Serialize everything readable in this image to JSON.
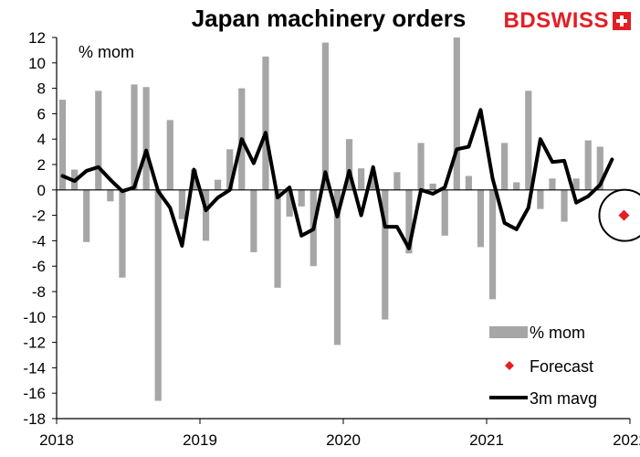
{
  "header": {
    "title": "Japan machinery orders",
    "brand": "BDSWISS"
  },
  "colors": {
    "bars": "#a6a6a6",
    "line": "#000000",
    "forecast": "#e31e24",
    "brand": "#e31e24"
  },
  "chart_data": {
    "type": "bar",
    "title": "Japan machinery orders",
    "ylabel": "% mom",
    "ylim": [
      -18,
      12
    ],
    "yticks": [
      12,
      10,
      8,
      6,
      4,
      2,
      0,
      -2,
      -4,
      -6,
      -8,
      -10,
      -12,
      -14,
      -16,
      -18
    ],
    "xlim": [
      "2018-01",
      "2022-01"
    ],
    "xticks": [
      "2018",
      "2019",
      "2020",
      "2021",
      "2022"
    ],
    "grid": false,
    "legend_position": "bottom-right",
    "categories": [
      "2018-01",
      "2018-02",
      "2018-03",
      "2018-04",
      "2018-05",
      "2018-06",
      "2018-07",
      "2018-08",
      "2018-09",
      "2018-10",
      "2018-11",
      "2018-12",
      "2019-01",
      "2019-02",
      "2019-03",
      "2019-04",
      "2019-05",
      "2019-06",
      "2019-07",
      "2019-08",
      "2019-09",
      "2019-10",
      "2019-11",
      "2019-12",
      "2020-01",
      "2020-02",
      "2020-03",
      "2020-04",
      "2020-05",
      "2020-06",
      "2020-07",
      "2020-08",
      "2020-09",
      "2020-10",
      "2020-11",
      "2020-12",
      "2021-01",
      "2021-02",
      "2021-03",
      "2021-04",
      "2021-05",
      "2021-06",
      "2021-07",
      "2021-08",
      "2021-09",
      "2021-10",
      "2021-11",
      "2021-12"
    ],
    "series": [
      {
        "name": "% mom",
        "type": "bar",
        "values": [
          7.1,
          1.6,
          -4.1,
          7.8,
          -0.9,
          -6.9,
          8.3,
          8.1,
          -16.6,
          5.5,
          -2.3,
          1.6,
          -4.0,
          0.8,
          3.2,
          8.0,
          -4.9,
          10.5,
          -7.7,
          -2.1,
          -1.3,
          -6.0,
          11.6,
          -12.2,
          4.0,
          1.7,
          1.4,
          -10.2,
          1.4,
          -5.0,
          3.7,
          0.5,
          -3.6,
          12.0,
          1.1,
          -4.5,
          -8.6,
          3.7,
          0.6,
          7.8,
          -1.5,
          0.9,
          -2.5,
          0.9,
          3.9,
          3.4,
          null,
          null
        ]
      },
      {
        "name": "3m mavg",
        "type": "line",
        "values": [
          1.1,
          0.7,
          1.5,
          1.8,
          0.8,
          -0.1,
          0.2,
          3.1,
          -0.1,
          -1.4,
          -4.4,
          1.6,
          -1.6,
          -0.6,
          0.0,
          4.0,
          2.1,
          4.5,
          -0.6,
          0.2,
          -3.6,
          -3.1,
          1.4,
          -2.1,
          1.5,
          -2.0,
          1.8,
          -2.9,
          -2.9,
          -4.6,
          0.0,
          -0.3,
          0.2,
          3.2,
          3.4,
          6.3,
          0.9,
          -2.6,
          -3.1,
          -1.4,
          4.0,
          2.2,
          2.3,
          -1.0,
          -0.5,
          0.4,
          2.4,
          null
        ]
      },
      {
        "name": "Forecast",
        "type": "scatter",
        "x": "2021-12",
        "value": -2.0
      }
    ]
  }
}
